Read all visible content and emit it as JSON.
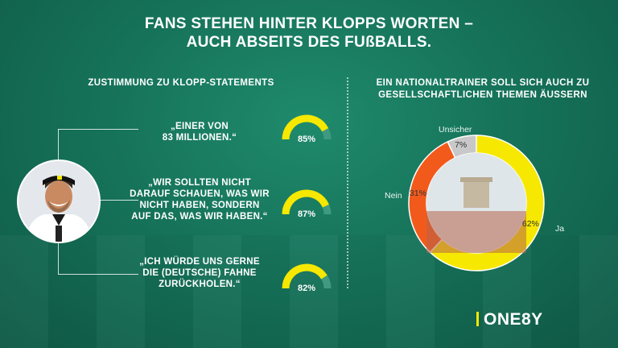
{
  "header": {
    "title_line1": "FANS STEHEN HINTER KLOPPS WORTEN –",
    "title_line2": "AUCH ABSEITS DES FUßBALLS."
  },
  "left_panel": {
    "heading": "ZUSTIMMUNG ZU KLOPP-STATEMENTS",
    "statements": [
      {
        "lines": [
          "„EINER VON",
          "83 MILLIONEN.“"
        ],
        "value": 85,
        "label": "85%"
      },
      {
        "lines": [
          "„WIR SOLLTEN NICHT",
          "DARAUF SCHAUEN, WAS WIR",
          "NICHT HABEN, SONDERN",
          "AUF DAS, WAS WIR HABEN.“"
        ],
        "value": 87,
        "label": "87%"
      },
      {
        "lines": [
          "„ICH WÜRDE UNS GERNE",
          "DIE (DEUTSCHE) FAHNE",
          "ZURÜCKHOLEN.“"
        ],
        "value": 82,
        "label": "82%"
      }
    ]
  },
  "right_panel": {
    "heading_line1": "EIN NATIONALTRAINER SOLL SICH AUCH ZU",
    "heading_line2": "GESELLSCHAFTLICHEN THEMEN ÄUSSERN"
  },
  "chart_data": [
    {
      "type": "gauge",
      "values": [
        85,
        87,
        82
      ],
      "unit": "%",
      "colors": {
        "fill": "#f6e800",
        "track": "#3f9a80"
      }
    },
    {
      "type": "pie",
      "style": "donut",
      "slices": [
        {
          "name": "Ja",
          "value": 62,
          "label": "62%",
          "color": "#f6e800"
        },
        {
          "name": "Nein",
          "value": 31,
          "label": "31%",
          "color": "#f25a1c"
        },
        {
          "name": "Unsicher",
          "value": 7,
          "label": "7%",
          "color": "#c8c8c8"
        }
      ]
    }
  ],
  "brand": {
    "logo_text": "ONE8Y",
    "accent": "#f6e800"
  }
}
